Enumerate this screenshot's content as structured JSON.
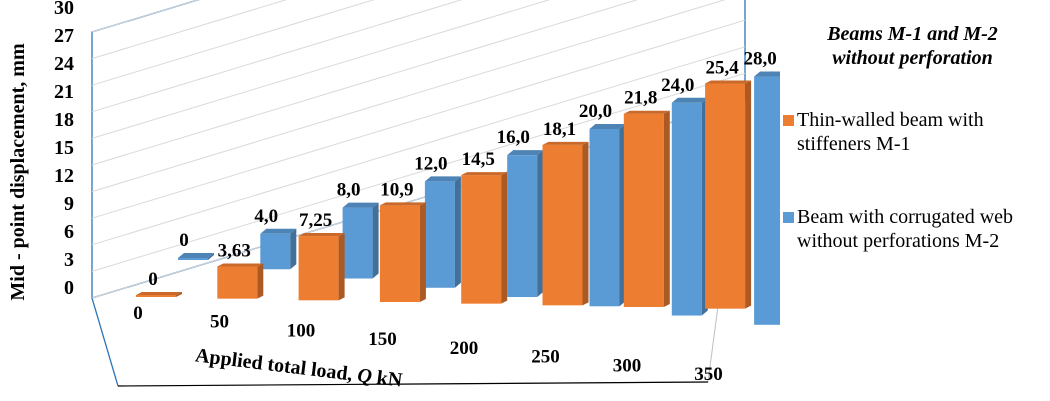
{
  "chart_data": {
    "type": "bar",
    "title": "",
    "xlabel_parts": [
      "Applied total load, ",
      "Q",
      " kN"
    ],
    "ylabel": "Mid - point displacement, mm",
    "ylim": [
      0,
      30
    ],
    "yticks": [
      "0",
      "3",
      "6",
      "9",
      "12",
      "15",
      "18",
      "21",
      "24",
      "27",
      "30"
    ],
    "categories": [
      "0",
      "50",
      "100",
      "150",
      "200",
      "250",
      "300",
      "350"
    ],
    "grid": true,
    "legend_position": "right",
    "legend_title_lines": [
      "Beams M-1 and M-2",
      "without perforation"
    ],
    "series": [
      {
        "name_lines": [
          "Thin-walled beam with",
          "stiffeners M-1"
        ],
        "color": "#ED7D31",
        "values": [
          0,
          3.63,
          7.25,
          10.9,
          14.5,
          18.1,
          21.8,
          25.4
        ],
        "labels": [
          "0",
          "3,63",
          "7,25",
          "10,9",
          "14,5",
          "18,1",
          "21,8",
          "25,4"
        ]
      },
      {
        "name_lines": [
          "Beam with corrugated web",
          "without perforations M-2"
        ],
        "color": "#5B9BD5",
        "values": [
          0,
          4.0,
          8.0,
          12.0,
          16.0,
          20.0,
          24.0,
          28.0
        ],
        "labels": [
          "0",
          "4,0",
          "8,0",
          "12,0",
          "16,0",
          "20,0",
          "24,0",
          "28,0"
        ]
      }
    ]
  }
}
